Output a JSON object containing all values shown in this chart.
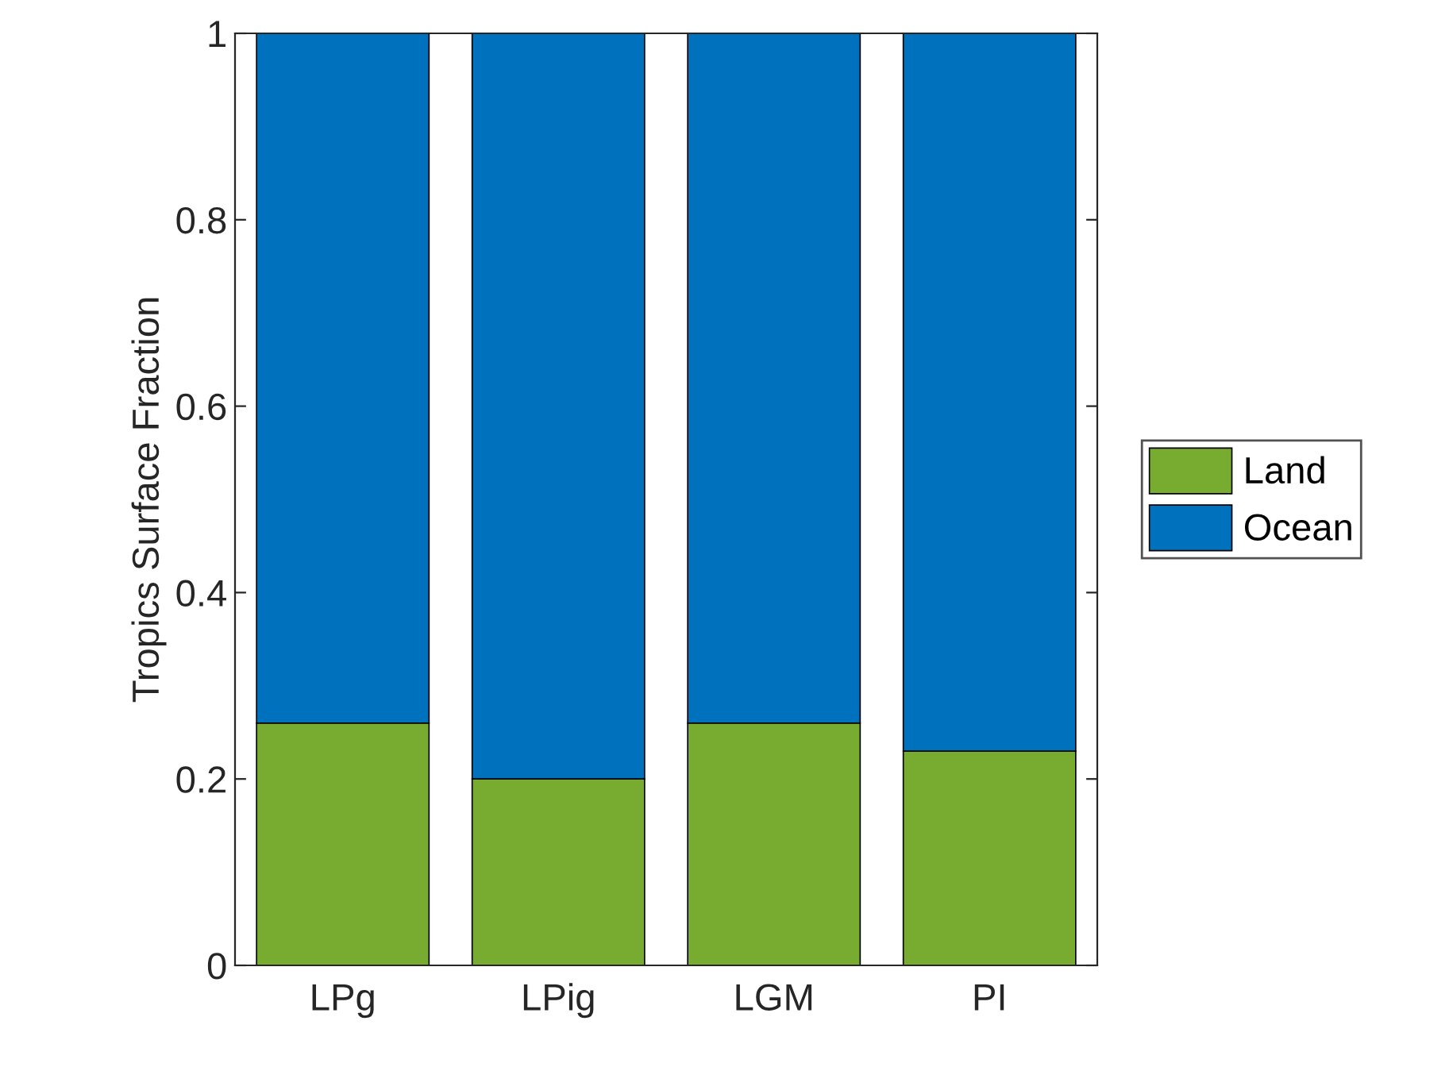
{
  "chart_data": {
    "type": "bar",
    "stacked": true,
    "ylabel": "Tropics Surface Fraction",
    "categories": [
      "LPg",
      "LPig",
      "LGM",
      "PI"
    ],
    "series": [
      {
        "name": "Land",
        "color": "#77ac30",
        "values": [
          0.26,
          0.2,
          0.26,
          0.23
        ]
      },
      {
        "name": "Ocean",
        "color": "#0072bd",
        "values": [
          0.74,
          0.8,
          0.74,
          0.77
        ]
      }
    ],
    "ylim": [
      0,
      1
    ],
    "yticks": [
      0,
      {
        "value": 0.2,
        "label": "0.2"
      },
      {
        "value": 0.4,
        "label": "0.4"
      },
      {
        "value": 0.6,
        "label": "0.6"
      },
      {
        "value": 0.8,
        "label": "0.8"
      },
      1
    ],
    "grid": false,
    "legend": "right"
  }
}
